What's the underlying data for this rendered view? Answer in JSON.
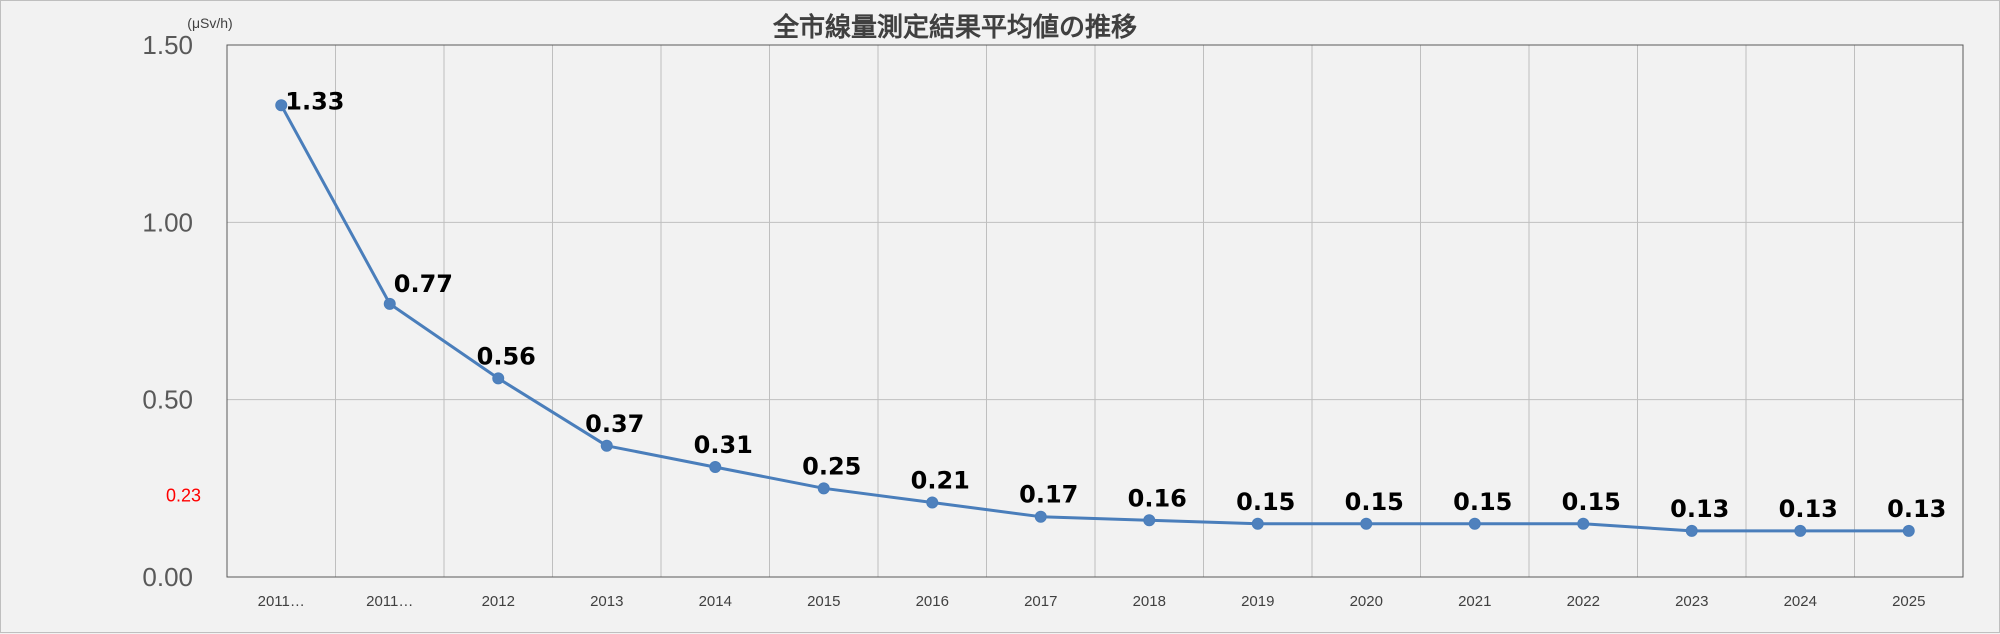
{
  "chart_data": {
    "type": "line",
    "title": "全市線量測定結果平均値の推移",
    "unit": "(μSv/h)",
    "categories": [
      "2011…",
      "2011…",
      "2012",
      "2013",
      "2014",
      "2015",
      "2016",
      "2017",
      "2018",
      "2019",
      "2020",
      "2021",
      "2022",
      "2023",
      "2024",
      "2025"
    ],
    "series": [
      {
        "values": [
          1.33,
          0.77,
          0.56,
          0.37,
          0.31,
          0.25,
          0.21,
          0.17,
          0.16,
          0.15,
          0.15,
          0.15,
          0.15,
          0.13,
          0.13,
          0.13
        ]
      }
    ],
    "data_labels": [
      "1.33",
      "0.77",
      "0.56",
      "0.37",
      "0.31",
      "0.25",
      "0.21",
      "0.17",
      "0.16",
      "0.15",
      "0.15",
      "0.15",
      "0.15",
      "0.13",
      "0.13",
      "0.13"
    ],
    "ylim": [
      0,
      1.5
    ],
    "y_ticks": [
      0,
      0.5,
      1.0,
      1.5
    ],
    "y_tick_labels": [
      "0.00",
      "0.50",
      "1.00",
      "1.50"
    ],
    "reference_value": 0.23,
    "reference_label": "0.23",
    "grid": true,
    "colors": {
      "line": "#4a7ebb",
      "marker": "#4f81bd",
      "reference": "#ff0000",
      "grid": "#bfbfbf"
    }
  }
}
